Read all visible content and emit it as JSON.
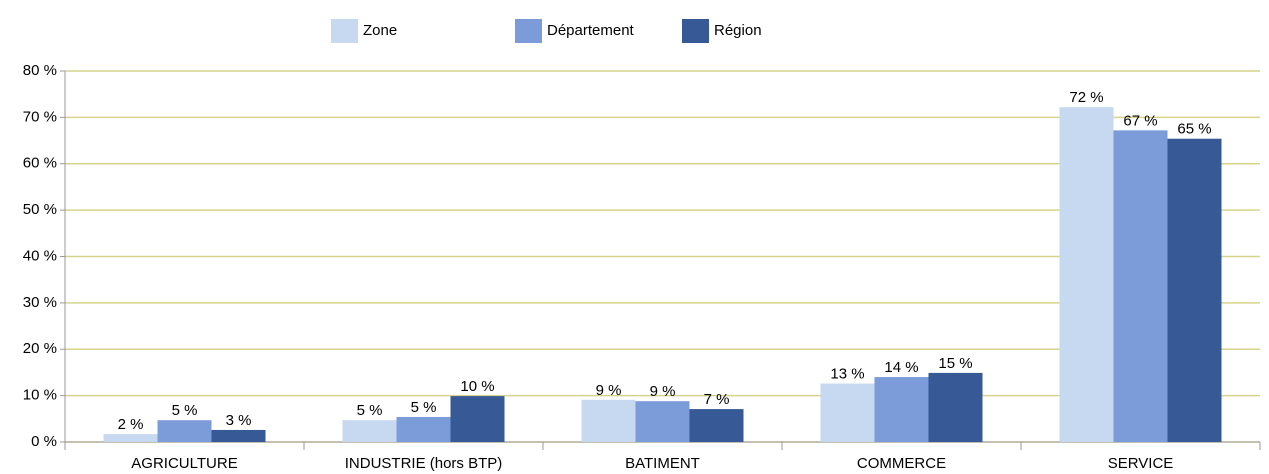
{
  "chart_data": {
    "type": "bar",
    "categories": [
      "AGRICULTURE",
      "INDUSTRIE (hors BTP)",
      "BATIMENT",
      "COMMERCE",
      "SERVICE"
    ],
    "series": [
      {
        "name": "Zone",
        "color": "#c6d9f1",
        "values": [
          1.7,
          4.7,
          9.1,
          12.6,
          72.2
        ],
        "value_labels": [
          "2 %",
          "5 %",
          "9 %",
          "13 %",
          "72 %"
        ]
      },
      {
        "name": "Département",
        "color": "#7b9bd9",
        "values": [
          4.7,
          5.4,
          8.8,
          14.0,
          67.2
        ],
        "value_labels": [
          "5 %",
          "5 %",
          "9 %",
          "14 %",
          "67 %"
        ]
      },
      {
        "name": "Région",
        "color": "#375a96",
        "values": [
          2.6,
          9.9,
          7.1,
          14.9,
          65.4
        ],
        "value_labels": [
          "3 %",
          "10 %",
          "7 %",
          "15 %",
          "65 %"
        ]
      }
    ],
    "ylim": [
      0,
      80
    ],
    "yticks": [
      {
        "value": 0,
        "label": "0 %"
      },
      {
        "value": 10,
        "label": "10 %"
      },
      {
        "value": 20,
        "label": "20 %"
      },
      {
        "value": 30,
        "label": "30 %"
      },
      {
        "value": 40,
        "label": "40 %"
      },
      {
        "value": 50,
        "label": "50 %"
      },
      {
        "value": 60,
        "label": "60 %"
      },
      {
        "value": 70,
        "label": "70 %"
      },
      {
        "value": 80,
        "label": "80 %"
      }
    ],
    "grid": true,
    "legend": "top"
  }
}
